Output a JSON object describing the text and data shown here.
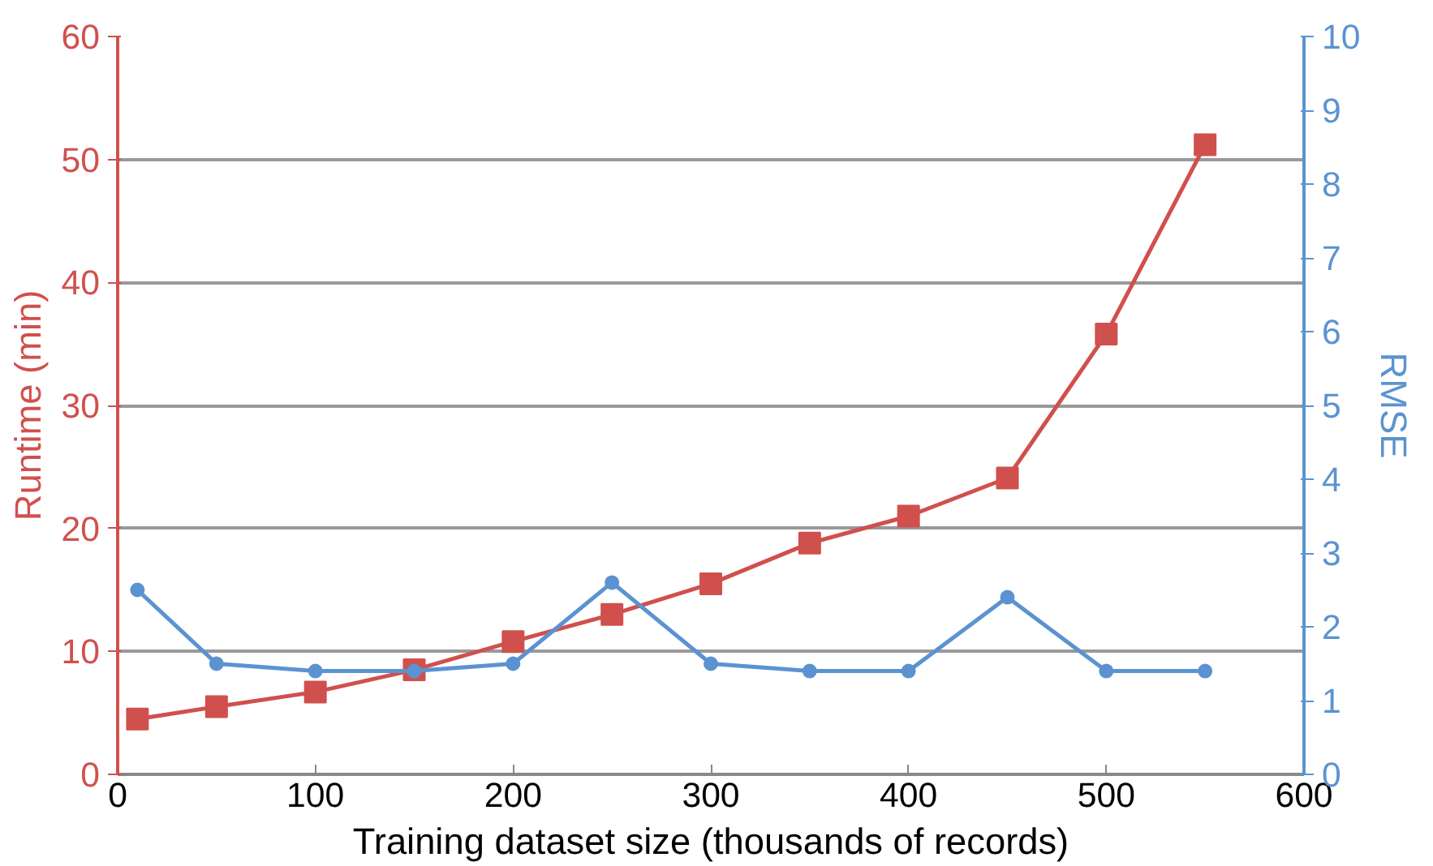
{
  "chart_data": {
    "type": "line",
    "xlabel": "Training dataset size (thousands of records)",
    "ylabel": "Runtime (min)",
    "y2label": "RMSE",
    "x": [
      10,
      50,
      100,
      150,
      200,
      250,
      300,
      350,
      400,
      450,
      500,
      550
    ],
    "series": [
      {
        "name": null,
        "color": "#d0504d",
        "marker": "square",
        "values": [
          4.5,
          5.5,
          6.7,
          8.5,
          10.8,
          13.0,
          15.5,
          18.8,
          21.0,
          24.1,
          35.8,
          51.2
        ]
      },
      {
        "name": null,
        "color": "#5b93d1",
        "marker": "circle",
        "axis": "y2",
        "values": [
          2.5,
          1.5,
          1.4,
          1.4,
          1.5,
          2.6,
          1.5,
          1.4,
          1.4,
          2.4,
          1.4,
          1.4
        ]
      }
    ],
    "xlim": [
      0,
      600
    ],
    "xticks": [
      0,
      100,
      200,
      300,
      400,
      500,
      600
    ],
    "ylim": [
      0,
      60
    ],
    "yticks": [
      0,
      10,
      20,
      30,
      40,
      50,
      60
    ],
    "y2lim": [
      0,
      10
    ],
    "y2ticks": [
      0,
      1,
      2,
      3,
      4,
      5,
      6,
      7,
      8,
      9,
      10
    ],
    "grid": "y",
    "line_style": "solid"
  }
}
